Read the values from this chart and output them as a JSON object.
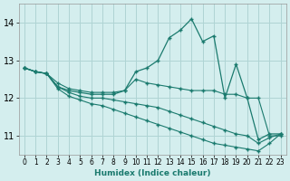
{
  "xlabel": "Humidex (Indice chaleur)",
  "ylabel": "",
  "background_color": "#d4eeee",
  "grid_color": "#afd4d4",
  "line_color": "#1a7a6e",
  "xlim": [
    -0.5,
    23.5
  ],
  "ylim": [
    10.5,
    14.5
  ],
  "yticks": [
    11,
    12,
    13,
    14
  ],
  "xticks": [
    0,
    1,
    2,
    3,
    4,
    5,
    6,
    7,
    8,
    9,
    10,
    11,
    12,
    13,
    14,
    15,
    16,
    17,
    18,
    19,
    20,
    21,
    22,
    23
  ],
  "series": [
    [
      12.8,
      12.7,
      12.65,
      12.3,
      12.2,
      12.15,
      12.1,
      12.1,
      12.1,
      12.2,
      12.7,
      12.8,
      13.0,
      13.6,
      13.8,
      14.1,
      13.5,
      13.65,
      12.0,
      12.9,
      12.0,
      10.9,
      11.05,
      11.05
    ],
    [
      12.8,
      12.7,
      12.65,
      12.4,
      12.25,
      12.2,
      12.15,
      12.15,
      12.15,
      12.2,
      12.5,
      12.4,
      12.35,
      12.3,
      12.25,
      12.2,
      12.2,
      12.2,
      12.1,
      12.1,
      12.0,
      12.0,
      11.0,
      11.0
    ],
    [
      12.8,
      12.7,
      12.65,
      12.3,
      12.15,
      12.05,
      12.0,
      12.0,
      11.95,
      11.9,
      11.85,
      11.8,
      11.75,
      11.65,
      11.55,
      11.45,
      11.35,
      11.25,
      11.15,
      11.05,
      11.0,
      10.8,
      10.95,
      11.05
    ],
    [
      12.8,
      12.7,
      12.65,
      12.25,
      12.05,
      11.95,
      11.85,
      11.8,
      11.7,
      11.6,
      11.5,
      11.4,
      11.3,
      11.2,
      11.1,
      11.0,
      10.9,
      10.8,
      10.75,
      10.7,
      10.65,
      10.6,
      10.8,
      11.05
    ]
  ]
}
